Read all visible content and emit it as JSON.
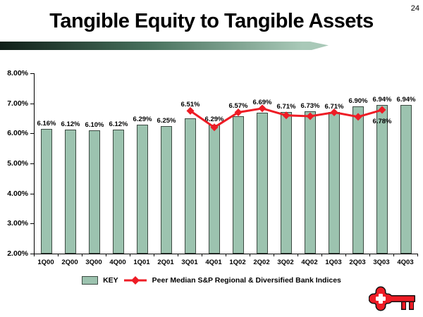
{
  "slide": {
    "page_number": "24",
    "title": "Tangible Equity to Tangible Assets"
  },
  "colors": {
    "bar_fill": "#9cc3af",
    "line_red": "#ee1c25",
    "accent_dark": "#101f18",
    "accent_mid": "#47705c",
    "accent_light": "#a9c9b8"
  },
  "chart_data": {
    "type": "bar+line",
    "title": "Tangible Equity to Tangible Assets",
    "xlabel": "",
    "ylabel": "",
    "ylim": [
      2,
      8
    ],
    "grid": false,
    "legend_position": "bottom",
    "categories": [
      "1Q00",
      "2Q00",
      "3Q00",
      "4Q00",
      "1Q01",
      "2Q01",
      "3Q01",
      "4Q01",
      "1Q02",
      "2Q02",
      "3Q02",
      "4Q02",
      "1Q03",
      "2Q03",
      "3Q03",
      "4Q03"
    ],
    "yticks": [
      {
        "label": "8.00%",
        "value": 8
      },
      {
        "label": "7.00%",
        "value": 7
      },
      {
        "label": "6.00%",
        "value": 6
      },
      {
        "label": "5.00%",
        "value": 5
      },
      {
        "label": "4.00%",
        "value": 4
      },
      {
        "label": "3.00%",
        "value": 3
      },
      {
        "label": "2.00%",
        "value": 2
      }
    ],
    "series": [
      {
        "name": "KEY",
        "type": "bar",
        "color": "#9cc3af",
        "values": [
          6.16,
          6.12,
          6.1,
          6.12,
          6.29,
          6.25,
          6.51,
          6.29,
          6.57,
          6.69,
          6.71,
          6.73,
          6.71,
          6.9,
          6.94,
          6.94
        ],
        "labels": [
          "6.16%",
          "6.12%",
          "6.10%",
          "6.12%",
          "6.29%",
          "6.25%",
          "6.51%",
          "6.29%",
          "6.57%",
          "6.69%",
          "6.71%",
          "6.73%",
          "6.71%",
          "6.90%",
          "6.94%",
          "6.94%"
        ]
      },
      {
        "name": "Peer Median S&P Regional & Diversified Bank Indices",
        "type": "line",
        "color": "#ee1c25",
        "marker": "diamond",
        "values": [
          null,
          null,
          null,
          null,
          null,
          null,
          6.75,
          6.2,
          6.7,
          6.83,
          6.6,
          6.57,
          6.7,
          6.55,
          6.78,
          null
        ],
        "point_labels": [
          {
            "index": 14,
            "text": "6.78%",
            "position": "below"
          }
        ]
      }
    ]
  }
}
